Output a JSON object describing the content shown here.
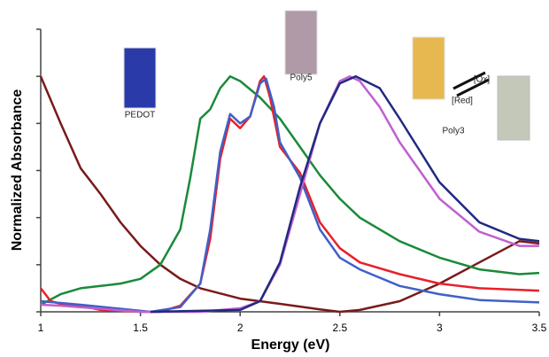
{
  "chart_data": {
    "type": "line",
    "xlabel": "Energy (eV)",
    "ylabel": "Normalized Absorbance",
    "xlim": [
      1,
      3.5
    ],
    "xticks": [
      1,
      1.5,
      2,
      2.5,
      3,
      3.5
    ],
    "ylim": [
      0,
      1.2
    ],
    "yticks": [
      0,
      0.2,
      0.4,
      0.6,
      0.8,
      1,
      1.2
    ],
    "annotations": [
      "PEDOT",
      "Poly5",
      "Poly3",
      "[Ox]",
      "[Red]"
    ],
    "series": [
      {
        "color": "#7a1a1a",
        "x": [
          1,
          1.1,
          1.2,
          1.3,
          1.4,
          1.5,
          1.6,
          1.7,
          1.8,
          2.0,
          2.2,
          2.4,
          2.5,
          2.6,
          2.8,
          3.0,
          3.2,
          3.4,
          3.5
        ],
        "values": [
          1.0,
          0.8,
          0.61,
          0.5,
          0.38,
          0.28,
          0.2,
          0.14,
          0.1,
          0.056,
          0.034,
          0.01,
          0,
          0.008,
          0.045,
          0.12,
          0.21,
          0.3,
          0.29
        ]
      },
      {
        "color": "#1a8a3a",
        "x": [
          1,
          1.1,
          1.2,
          1.3,
          1.4,
          1.5,
          1.6,
          1.7,
          1.75,
          1.8,
          1.85,
          1.9,
          1.95,
          2.0,
          2.1,
          2.2,
          2.3,
          2.4,
          2.5,
          2.6,
          2.8,
          3.0,
          3.2,
          3.4,
          3.5
        ],
        "values": [
          0.03,
          0.075,
          0.1,
          0.11,
          0.12,
          0.14,
          0.2,
          0.35,
          0.57,
          0.82,
          0.86,
          0.95,
          1.0,
          0.98,
          0.91,
          0.82,
          0.7,
          0.58,
          0.48,
          0.4,
          0.3,
          0.23,
          0.18,
          0.16,
          0.165
        ]
      },
      {
        "color": "#e8202a",
        "x": [
          1,
          1.05,
          1.1,
          1.2,
          1.3,
          1.5,
          1.6,
          1.7,
          1.8,
          1.85,
          1.9,
          1.95,
          2.0,
          2.05,
          2.1,
          2.12,
          2.15,
          2.2,
          2.3,
          2.4,
          2.5,
          2.6,
          2.8,
          3.0,
          3.2,
          3.5
        ],
        "values": [
          0.1,
          0.045,
          0.034,
          0.026,
          0.008,
          0,
          0,
          0.026,
          0.12,
          0.31,
          0.65,
          0.82,
          0.78,
          0.83,
          0.98,
          1.0,
          0.91,
          0.7,
          0.59,
          0.38,
          0.27,
          0.21,
          0.16,
          0.12,
          0.1,
          0.09
        ]
      },
      {
        "color": "#4060c8",
        "x": [
          1,
          1.2,
          1.55,
          1.7,
          1.8,
          1.85,
          1.9,
          1.95,
          2.0,
          2.05,
          2.1,
          2.13,
          2.17,
          2.2,
          2.3,
          2.4,
          2.5,
          2.6,
          2.8,
          3.0,
          3.2,
          3.5
        ],
        "values": [
          0.045,
          0.03,
          0,
          0.02,
          0.12,
          0.35,
          0.68,
          0.84,
          0.8,
          0.83,
          0.97,
          0.99,
          0.87,
          0.72,
          0.57,
          0.35,
          0.23,
          0.18,
          0.11,
          0.075,
          0.05,
          0.04
        ]
      },
      {
        "color": "#c060d0",
        "x": [
          1,
          1.1,
          1.5,
          1.8,
          2.0,
          2.1,
          2.2,
          2.3,
          2.4,
          2.5,
          2.55,
          2.6,
          2.7,
          2.8,
          3.0,
          3.2,
          3.4,
          3.5
        ],
        "values": [
          0.03,
          0.026,
          0,
          0,
          0.015,
          0.045,
          0.2,
          0.5,
          0.8,
          0.98,
          1.0,
          0.98,
          0.87,
          0.72,
          0.48,
          0.34,
          0.28,
          0.28
        ]
      },
      {
        "color": "#202a80",
        "x": [
          1.55,
          2.0,
          2.1,
          2.2,
          2.3,
          2.4,
          2.5,
          2.58,
          2.7,
          2.8,
          3.0,
          3.2,
          3.4,
          3.5
        ],
        "values": [
          0,
          0.008,
          0.045,
          0.21,
          0.53,
          0.8,
          0.97,
          1.0,
          0.95,
          0.82,
          0.55,
          0.38,
          0.31,
          0.3
        ]
      }
    ]
  }
}
